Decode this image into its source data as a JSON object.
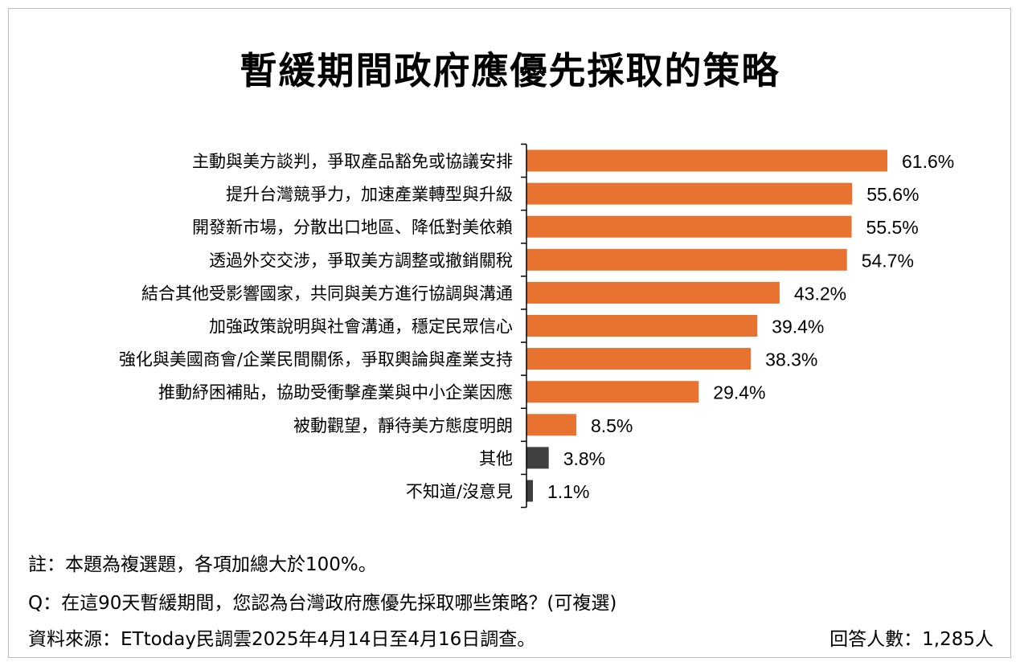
{
  "title": "暫緩期間政府應優先採取的策略",
  "colors": {
    "primary": "#E8722F",
    "secondary": "#404040",
    "axis": "#000000"
  },
  "chart_data": {
    "type": "bar",
    "orientation": "horizontal",
    "title": "暫緩期間政府應優先採取的策略",
    "unit": "%",
    "xlim": [
      0,
      70
    ],
    "grid": false,
    "bars": [
      {
        "label": "主動與美方談判，爭取產品豁免或協議安排",
        "value": 61.6,
        "display": "61.6%",
        "color": "primary"
      },
      {
        "label": "提升台灣競爭力，加速產業轉型與升級",
        "value": 55.6,
        "display": "55.6%",
        "color": "primary"
      },
      {
        "label": "開發新市場，分散出口地區、降低對美依賴",
        "value": 55.5,
        "display": "55.5%",
        "color": "primary"
      },
      {
        "label": "透過外交交涉，爭取美方調整或撤銷關稅",
        "value": 54.7,
        "display": "54.7%",
        "color": "primary"
      },
      {
        "label": "結合其他受影響國家，共同與美方進行協調與溝通",
        "value": 43.2,
        "display": "43.2%",
        "color": "primary"
      },
      {
        "label": "加強政策說明與社會溝通，穩定民眾信心",
        "value": 39.4,
        "display": "39.4%",
        "color": "primary"
      },
      {
        "label": "強化與美國商會/企業民間關係，爭取輿論與產業支持",
        "value": 38.3,
        "display": "38.3%",
        "color": "primary"
      },
      {
        "label": "推動紓困補貼，協助受衝擊產業與中小企業因應",
        "value": 29.4,
        "display": "29.4%",
        "color": "primary"
      },
      {
        "label": "被動觀望，靜待美方態度明朗",
        "value": 8.5,
        "display": "8.5%",
        "color": "primary"
      },
      {
        "label": "其他",
        "value": 3.8,
        "display": "3.8%",
        "color": "secondary"
      },
      {
        "label": "不知道/沒意見",
        "value": 1.1,
        "display": "1.1%",
        "color": "secondary"
      }
    ]
  },
  "notes": {
    "note": "註：本題為複選題，各項加總大於100%。",
    "question": "Q：在這90天暫緩期間，您認為台灣政府應優先採取哪些策略？(可複選)",
    "source": "資料來源：ETtoday民調雲2025年4月14日至4月16日調查。",
    "respondents": "回答人數：1,285人"
  }
}
